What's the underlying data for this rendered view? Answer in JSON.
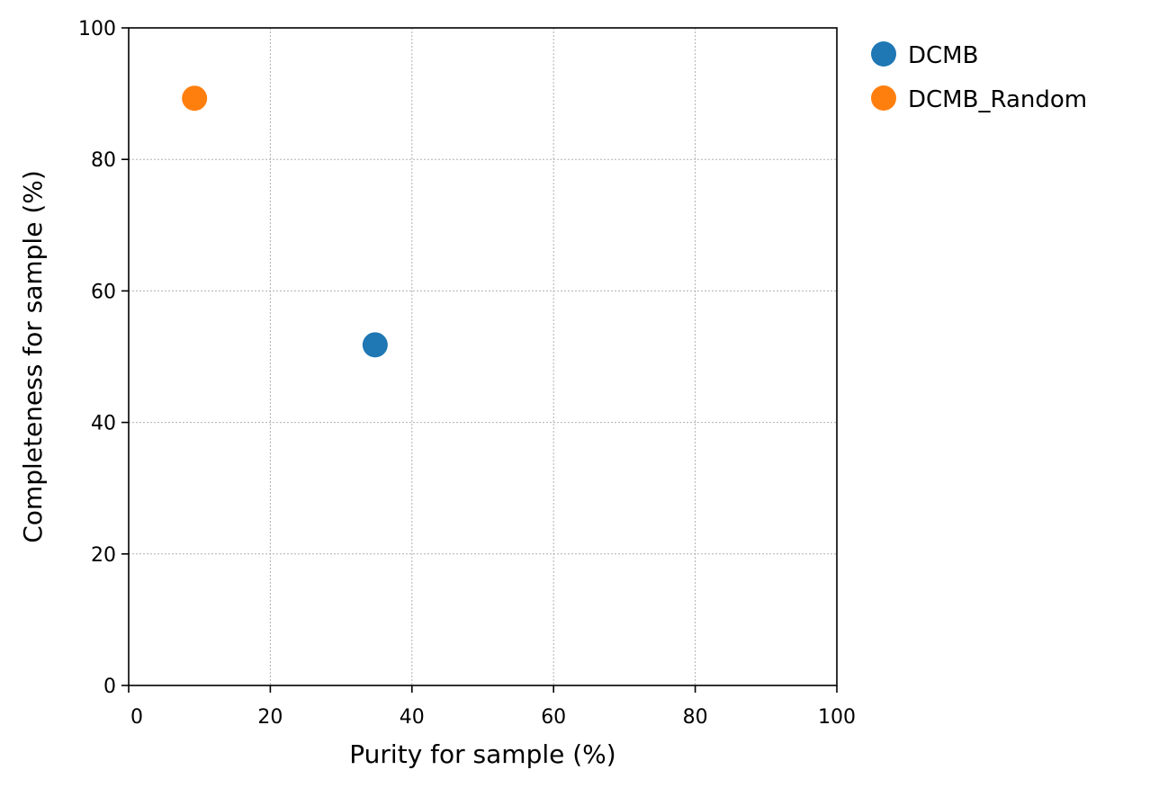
{
  "chart_data": {
    "type": "scatter",
    "title": "",
    "xlabel": "Purity for sample (%)",
    "ylabel": "Completeness for sample (%)",
    "xlim": [
      0,
      100
    ],
    "ylim": [
      0,
      100
    ],
    "xticks": [
      0,
      20,
      40,
      60,
      80,
      100
    ],
    "yticks": [
      0,
      20,
      40,
      60,
      80,
      100
    ],
    "grid": true,
    "legend_position": "outside-right-top",
    "series": [
      {
        "name": "DCMB",
        "color": "#1f77b4",
        "points": [
          {
            "x": 34.8,
            "y": 51.8
          }
        ]
      },
      {
        "name": "DCMB_Random",
        "color": "#ff7f0e",
        "points": [
          {
            "x": 9.3,
            "y": 89.3
          }
        ]
      }
    ]
  }
}
